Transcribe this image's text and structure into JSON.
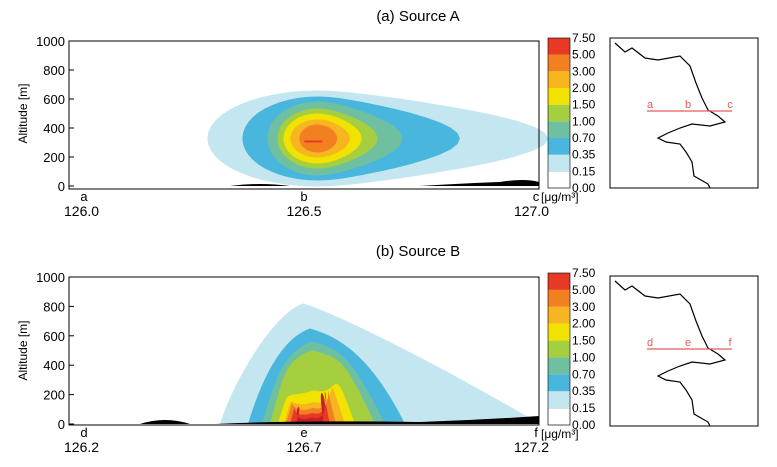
{
  "chart_data": [
    {
      "type": "heatmap",
      "title": "(a) Source A",
      "ylabel": "Altitude [m]",
      "ylim": [
        0,
        1000
      ],
      "yticks": [
        "0",
        "200",
        "400",
        "600",
        "800",
        "1000"
      ],
      "xlim": [
        126.0,
        127.0
      ],
      "xticks": [
        "126.0",
        "126.5",
        "127.0"
      ],
      "point_labels": [
        "a",
        "b",
        "c"
      ],
      "colorbar_unit": "[μg/m³]",
      "colorbar_levels": [
        "0.00",
        "0.15",
        "0.35",
        "0.70",
        "1.00",
        "1.50",
        "2.00",
        "3.00",
        "5.00",
        "7.50"
      ],
      "map_labels": [
        "a",
        "b",
        "c"
      ],
      "peak": {
        "lon": 126.5,
        "altitude": 300,
        "level": "3.00-5.00"
      }
    },
    {
      "type": "heatmap",
      "title": "(b) Source B",
      "ylabel": "Altitude [m]",
      "ylim": [
        0,
        1000
      ],
      "yticks": [
        "0",
        "200",
        "400",
        "600",
        "800",
        "1000"
      ],
      "xlim": [
        126.2,
        127.2
      ],
      "xticks": [
        "126.2",
        "126.7",
        "127.2"
      ],
      "point_labels": [
        "d",
        "e",
        "f"
      ],
      "colorbar_unit": "[μg/m³]",
      "colorbar_levels": [
        "0.00",
        "0.15",
        "0.35",
        "0.70",
        "1.00",
        "1.50",
        "2.00",
        "3.00",
        "5.00",
        "7.50"
      ],
      "map_labels": [
        "d",
        "e",
        "f"
      ],
      "peak": {
        "lon": 126.7,
        "altitude": 50,
        "level": "5.00-7.50"
      }
    }
  ],
  "colors": {
    "levels": [
      "#ffffff",
      "#c4e6f0",
      "#49b6dd",
      "#6fc0a0",
      "#a6cf3f",
      "#f2e200",
      "#f7b51f",
      "#f28020",
      "#e63a24",
      "#c81e25"
    ],
    "transect": "#e65a5a",
    "terrain": "#000000"
  }
}
